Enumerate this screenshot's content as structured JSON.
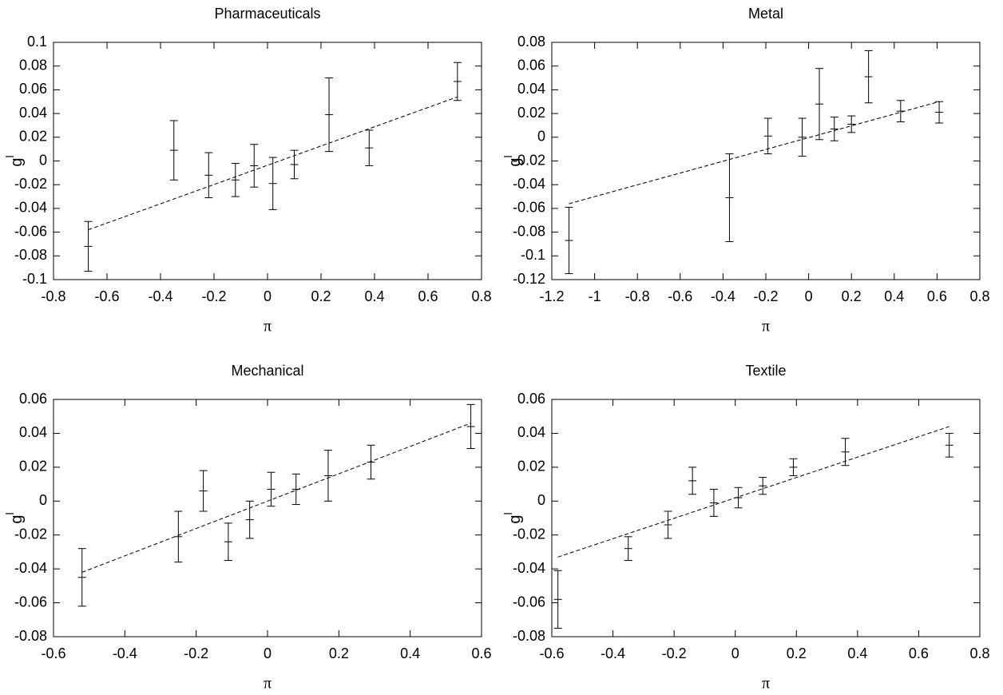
{
  "chart_data": [
    {
      "type": "errorbar",
      "title": "Pharmaceuticals",
      "xlabel": "π",
      "ylabel": "g",
      "ylabel_superscript": "l",
      "x": [
        -0.67,
        -0.35,
        -0.22,
        -0.12,
        -0.05,
        0.02,
        0.1,
        0.23,
        0.38,
        0.71
      ],
      "values": [
        -0.072,
        0.009,
        -0.012,
        -0.016,
        -0.004,
        -0.019,
        -0.003,
        0.039,
        0.011,
        0.067
      ],
      "errors": [
        0.021,
        0.025,
        0.019,
        0.014,
        0.018,
        0.022,
        0.012,
        0.031,
        0.015,
        0.016
      ],
      "fit": {
        "x": [
          -0.67,
          0.71
        ],
        "y": [
          -0.058,
          0.054
        ]
      },
      "color": "#000000",
      "xlim": [
        -0.8,
        0.8
      ],
      "xticks": [
        -0.8,
        -0.6,
        -0.4,
        -0.2,
        0,
        0.2,
        0.4,
        0.6,
        0.8
      ],
      "ylim": [
        -0.1,
        0.1
      ],
      "yticks": [
        -0.1,
        -0.08,
        -0.06,
        -0.04,
        -0.02,
        0,
        0.02,
        0.04,
        0.06,
        0.08,
        0.1
      ]
    },
    {
      "type": "errorbar",
      "title": "Metal",
      "xlabel": "π",
      "ylabel": "g",
      "ylabel_superscript": "l",
      "x": [
        -1.12,
        -0.37,
        -0.19,
        -0.03,
        0.05,
        0.12,
        0.2,
        0.28,
        0.43,
        0.61
      ],
      "values": [
        -0.087,
        -0.051,
        0.001,
        0.0,
        0.028,
        0.007,
        0.011,
        0.051,
        0.022,
        0.021
      ],
      "errors": [
        0.028,
        0.037,
        0.015,
        0.016,
        0.03,
        0.01,
        0.007,
        0.022,
        0.009,
        0.009
      ],
      "fit": {
        "x": [
          -1.12,
          0.61
        ],
        "y": [
          -0.056,
          0.03
        ]
      },
      "color": "#000000",
      "xlim": [
        -1.2,
        0.8
      ],
      "xticks": [
        -1.2,
        -1,
        -0.8,
        -0.6,
        -0.4,
        -0.2,
        0,
        0.2,
        0.4,
        0.6,
        0.8
      ],
      "ylim": [
        -0.12,
        0.08
      ],
      "yticks": [
        -0.12,
        -0.1,
        -0.08,
        -0.06,
        -0.04,
        -0.02,
        0,
        0.02,
        0.04,
        0.06,
        0.08
      ]
    },
    {
      "type": "errorbar",
      "title": "Mechanical",
      "xlabel": "π",
      "ylabel": "g",
      "ylabel_superscript": "l",
      "x": [
        -0.52,
        -0.25,
        -0.18,
        -0.11,
        -0.05,
        0.01,
        0.08,
        0.17,
        0.29,
        0.57
      ],
      "values": [
        -0.045,
        -0.021,
        0.006,
        -0.024,
        -0.011,
        0.007,
        0.007,
        0.015,
        0.023,
        0.044
      ],
      "errors": [
        0.017,
        0.015,
        0.012,
        0.011,
        0.011,
        0.01,
        0.009,
        0.015,
        0.01,
        0.013
      ],
      "fit": {
        "x": [
          -0.52,
          0.57
        ],
        "y": [
          -0.042,
          0.046
        ]
      },
      "color": "#000000",
      "xlim": [
        -0.6,
        0.6
      ],
      "xticks": [
        -0.6,
        -0.4,
        -0.2,
        0,
        0.2,
        0.4,
        0.6
      ],
      "ylim": [
        -0.08,
        0.06
      ],
      "yticks": [
        -0.08,
        -0.06,
        -0.04,
        -0.02,
        0,
        0.02,
        0.04,
        0.06
      ]
    },
    {
      "type": "errorbar",
      "title": "Textile",
      "xlabel": "π",
      "ylabel": "g",
      "ylabel_superscript": "l",
      "x": [
        -0.58,
        -0.35,
        -0.22,
        -0.14,
        -0.07,
        0.01,
        0.09,
        0.19,
        0.36,
        0.7
      ],
      "values": [
        -0.058,
        -0.028,
        -0.014,
        0.012,
        -0.001,
        0.002,
        0.009,
        0.02,
        0.029,
        0.033
      ],
      "errors": [
        0.017,
        0.007,
        0.008,
        0.008,
        0.008,
        0.006,
        0.005,
        0.005,
        0.008,
        0.007
      ],
      "fit": {
        "x": [
          -0.58,
          0.7
        ],
        "y": [
          -0.033,
          0.044
        ]
      },
      "color": "#000000",
      "xlim": [
        -0.6,
        0.8
      ],
      "xticks": [
        -0.6,
        -0.4,
        -0.2,
        0,
        0.2,
        0.4,
        0.6,
        0.8
      ],
      "ylim": [
        -0.08,
        0.06
      ],
      "yticks": [
        -0.08,
        -0.06,
        -0.04,
        -0.02,
        0,
        0.02,
        0.04,
        0.06
      ]
    }
  ]
}
